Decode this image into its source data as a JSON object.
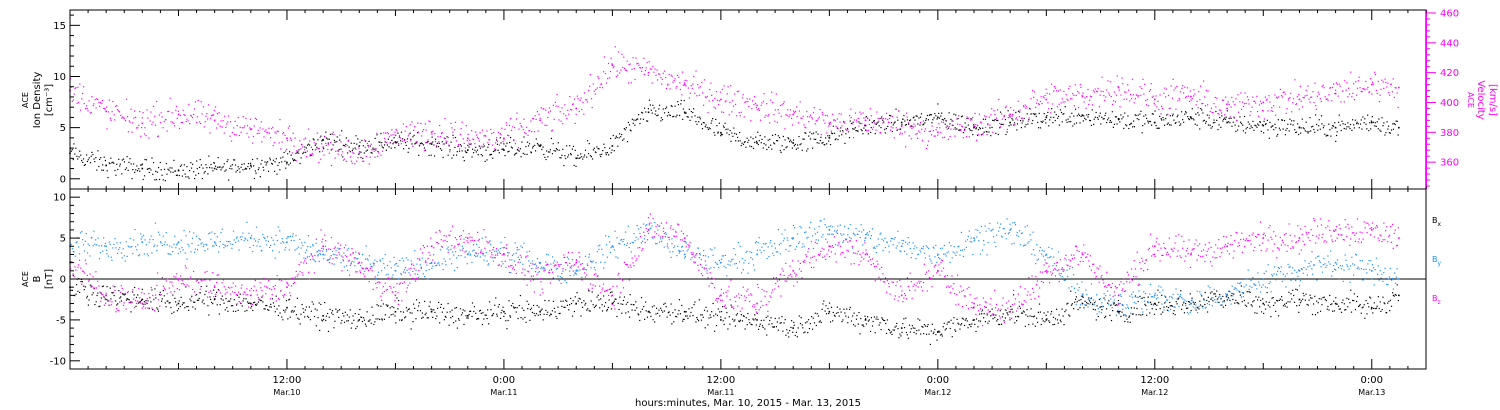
{
  "colors": {
    "axis": "#000000",
    "density": "#000000",
    "velocity": "#ff00ff",
    "bx": "#000000",
    "by": "#1e90ff",
    "bz": "#ff00ff"
  },
  "chart_data": [
    {
      "type": "scatter",
      "panel": "top",
      "left_axis": {
        "label_lines": [
          "ACE",
          "Ion Density",
          "[cm⁻³]"
        ],
        "ylim": [
          -1,
          16.5
        ],
        "ticks": [
          0,
          5,
          10,
          15
        ],
        "tick_labels": [
          "0",
          "5",
          "10",
          "15"
        ]
      },
      "right_axis": {
        "label_lines": [
          "ACE",
          "Velocity",
          "[km/s]"
        ],
        "ylim": [
          342,
          462
        ],
        "ticks": [
          360,
          380,
          400,
          420,
          440,
          460
        ],
        "tick_labels": [
          "360",
          "380",
          "400",
          "420",
          "440",
          "460"
        ],
        "color": "#ff00ff"
      },
      "series": [
        {
          "axis": "left",
          "x_hours": [
            0,
            2,
            4,
            6,
            8,
            10,
            12,
            14,
            16,
            18,
            20,
            22,
            24,
            26,
            28,
            30,
            32,
            34,
            36,
            38,
            40,
            42,
            44,
            46,
            48,
            50,
            52,
            54,
            56,
            58,
            60,
            62,
            64,
            66,
            68,
            70,
            72,
            73.5
          ],
          "values": [
            2.5,
            1.3,
            1.0,
            0.8,
            1.0,
            1.3,
            1.6,
            3.8,
            3.2,
            3.6,
            3.4,
            2.8,
            2.8,
            3.2,
            2.0,
            3.2,
            6.5,
            6.5,
            4.5,
            3.5,
            3.5,
            4.0,
            5.2,
            5.5,
            6.0,
            5.0,
            5.5,
            6.0,
            6.2,
            5.8,
            5.5,
            6.0,
            5.5,
            5.2,
            5.0,
            5.0,
            5.5,
            5.0
          ]
        },
        {
          "axis": "right",
          "x_hours": [
            0,
            2,
            4,
            6,
            8,
            10,
            12,
            14,
            16,
            18,
            20,
            22,
            24,
            26,
            28,
            30,
            32,
            34,
            36,
            38,
            40,
            42,
            44,
            46,
            48,
            50,
            52,
            54,
            56,
            58,
            60,
            62,
            64,
            66,
            68,
            70,
            72,
            73.5
          ],
          "values": [
            408,
            394,
            386,
            392,
            388,
            382,
            376,
            370,
            366,
            378,
            380,
            376,
            376,
            388,
            396,
            425,
            420,
            412,
            402,
            398,
            392,
            386,
            388,
            384,
            380,
            384,
            392,
            402,
            404,
            410,
            402,
            404,
            396,
            400,
            402,
            406,
            412,
            410
          ]
        }
      ]
    },
    {
      "type": "scatter",
      "panel": "bottom",
      "left_axis": {
        "label_lines": [
          "ACE",
          "B",
          "[nT]"
        ],
        "ylim": [
          -11,
          11
        ],
        "ticks": [
          -10,
          -5,
          0,
          5,
          10
        ],
        "tick_labels": [
          "-10",
          "-5",
          "0",
          "5",
          "10"
        ]
      },
      "zero_line": 0,
      "legend": {
        "placement": "right",
        "entries": [
          {
            "base": "B",
            "sub": "x",
            "color": "#000000"
          },
          {
            "base": "B",
            "sub": "y",
            "color": "#1e90ff"
          },
          {
            "base": "B",
            "sub": "z",
            "color": "#ff00ff"
          }
        ]
      },
      "series": [
        {
          "name": "Bx",
          "x_hours": [
            0,
            2,
            4,
            6,
            8,
            10,
            12,
            14,
            16,
            18,
            20,
            22,
            24,
            26,
            28,
            30,
            32,
            34,
            36,
            38,
            40,
            42,
            44,
            46,
            48,
            50,
            52,
            54,
            56,
            58,
            60,
            62,
            64,
            66,
            68,
            70,
            72,
            73.5
          ],
          "values": [
            -1,
            -2,
            -2.5,
            -3,
            -2.5,
            -3,
            -3.5,
            -4.5,
            -5,
            -4,
            -4,
            -4.5,
            -4,
            -4,
            -3,
            -3,
            -4,
            -4,
            -5,
            -5,
            -6,
            -4,
            -5,
            -6,
            -6.5,
            -5,
            -4,
            -5,
            -3,
            -4,
            -3,
            -3,
            -2,
            -3,
            -2.5,
            -3,
            -3.5,
            -2
          ]
        },
        {
          "name": "By",
          "x_hours": [
            0,
            2,
            4,
            6,
            8,
            10,
            12,
            14,
            16,
            18,
            20,
            22,
            24,
            26,
            28,
            30,
            32,
            34,
            36,
            38,
            40,
            42,
            44,
            46,
            48,
            50,
            52,
            54,
            56,
            58,
            60,
            62,
            64,
            66,
            68,
            70,
            72,
            73.5
          ],
          "values": [
            4,
            4,
            4.5,
            4.5,
            4.5,
            5,
            4.5,
            3,
            2,
            1,
            2,
            3,
            3,
            2,
            1,
            4,
            6,
            3,
            2,
            3,
            5,
            6,
            5,
            4,
            3,
            5,
            6,
            3,
            -2,
            -3,
            -2,
            -3,
            -2,
            0,
            1,
            2,
            1,
            0
          ]
        },
        {
          "name": "Bz",
          "x_hours": [
            0,
            2,
            4,
            6,
            8,
            10,
            12,
            14,
            16,
            18,
            20,
            22,
            24,
            26,
            28,
            30,
            32,
            34,
            36,
            38,
            40,
            42,
            44,
            46,
            48,
            50,
            52,
            54,
            56,
            58,
            60,
            62,
            64,
            66,
            68,
            70,
            72,
            73.5
          ],
          "values": [
            2,
            -2,
            -3,
            0,
            -1,
            -2,
            -1,
            4,
            2,
            -2,
            4,
            5,
            3,
            0,
            2,
            -2,
            6,
            5,
            -2,
            -3,
            1,
            4,
            3,
            -2,
            1,
            -3,
            -4,
            1,
            3,
            -2,
            4,
            3,
            4,
            5,
            5,
            6,
            6,
            5
          ]
        }
      ]
    }
  ],
  "x_axis": {
    "units": "hours since 2015-03-10 00:00",
    "xlim": [
      0,
      75
    ],
    "major_tick_hours": [
      12,
      24,
      36,
      48,
      60,
      72
    ],
    "tick_labels": [
      {
        "time": "12:00",
        "date": "Mar.10"
      },
      {
        "time": "0:00",
        "date": "Mar.11"
      },
      {
        "time": "12:00",
        "date": "Mar.11"
      },
      {
        "time": "0:00",
        "date": "Mar.12"
      },
      {
        "time": "12:00",
        "date": "Mar.12"
      },
      {
        "time": "0:00",
        "date": "Mar.13"
      }
    ],
    "title": "hours:minutes, Mar. 10, 2015 - Mar. 13, 2015"
  }
}
